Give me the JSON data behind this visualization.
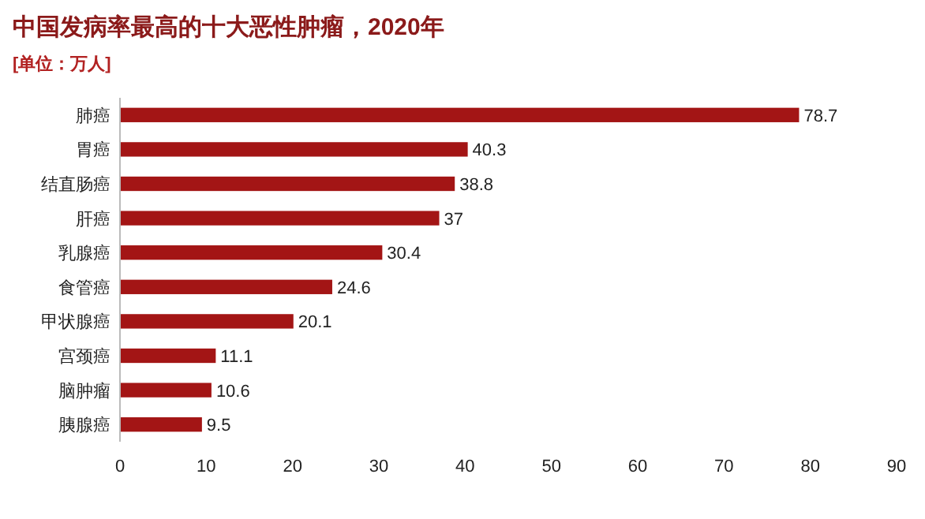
{
  "chart_data": {
    "type": "bar",
    "orientation": "horizontal",
    "title": "中国发病率最高的十大恶性肿瘤，2020年",
    "subtitle": "[单位：万人]",
    "categories": [
      "肺癌",
      "胃癌",
      "结直肠癌",
      "肝癌",
      "乳腺癌",
      "食管癌",
      "甲状腺癌",
      "宫颈癌",
      "脑肿瘤",
      "胰腺癌"
    ],
    "values": [
      78.7,
      40.3,
      38.8,
      37,
      30.4,
      24.6,
      20.1,
      11.1,
      10.6,
      9.5
    ],
    "color": "#a31515",
    "xlim": [
      0,
      90
    ],
    "xticks": [
      0,
      10,
      20,
      30,
      40,
      50,
      60,
      70,
      80,
      90
    ],
    "data_labels": true
  }
}
